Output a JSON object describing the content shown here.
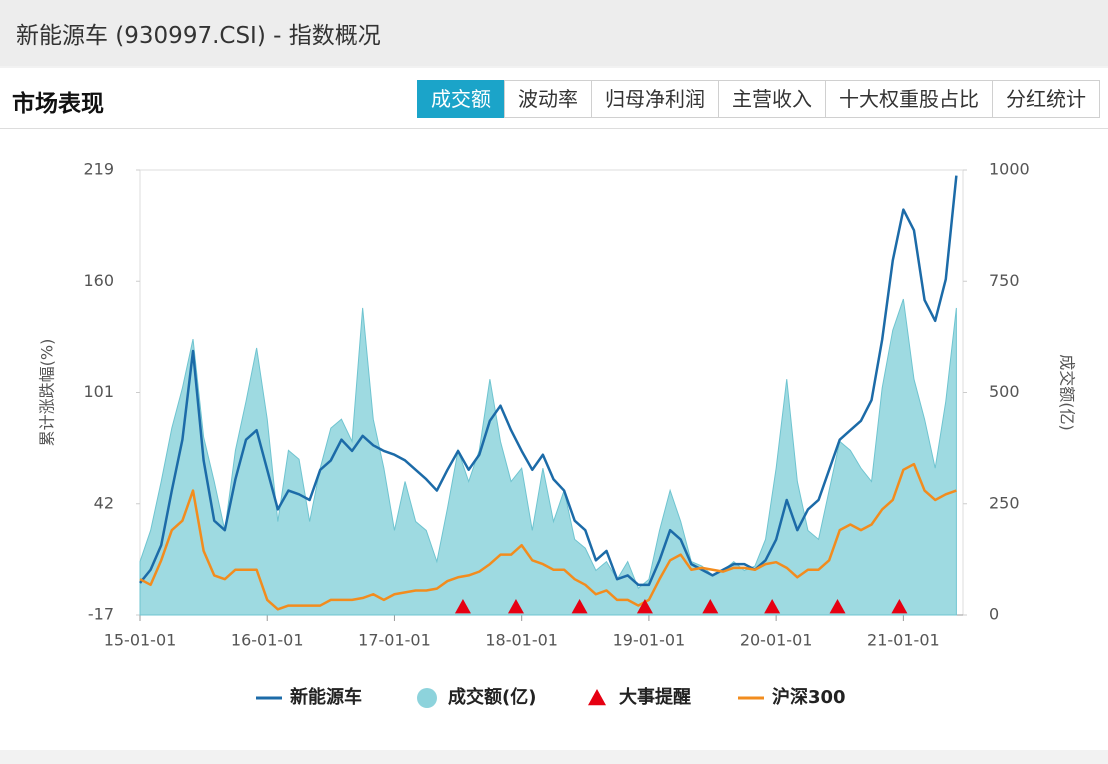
{
  "header": {
    "title": "新能源车 (930997.CSI) - 指数概况"
  },
  "section": {
    "title": "市场表现",
    "tabs": [
      "成交额",
      "波动率",
      "归母净利润",
      "主营收入",
      "十大权重股占比",
      "分红统计"
    ],
    "active_tab": 0
  },
  "chart_data": {
    "type": "line",
    "ylabel": "累计涨跌幅(%)",
    "y2label": "成交额(亿)",
    "x": [
      "15-01-01",
      "15-02-01",
      "15-03-01",
      "15-04-01",
      "15-05-01",
      "15-06-01",
      "15-07-01",
      "15-08-01",
      "15-09-01",
      "15-10-01",
      "15-11-01",
      "15-12-01",
      "16-01-01",
      "16-02-01",
      "16-03-01",
      "16-04-01",
      "16-05-01",
      "16-06-01",
      "16-07-01",
      "16-08-01",
      "16-09-01",
      "16-10-01",
      "16-11-01",
      "16-12-01",
      "17-01-01",
      "17-02-01",
      "17-03-01",
      "17-04-01",
      "17-05-01",
      "17-06-01",
      "17-07-01",
      "17-08-01",
      "17-09-01",
      "17-10-01",
      "17-11-01",
      "17-12-01",
      "18-01-01",
      "18-02-01",
      "18-03-01",
      "18-04-01",
      "18-05-01",
      "18-06-01",
      "18-07-01",
      "18-08-01",
      "18-09-01",
      "18-10-01",
      "18-11-01",
      "18-12-01",
      "19-01-01",
      "19-02-01",
      "19-03-01",
      "19-04-01",
      "19-05-01",
      "19-06-01",
      "19-07-01",
      "19-08-01",
      "19-09-01",
      "19-10-01",
      "19-11-01",
      "19-12-01",
      "20-01-01",
      "20-02-01",
      "20-03-01",
      "20-04-01",
      "20-05-01",
      "20-06-01",
      "20-07-01",
      "20-08-01",
      "20-09-01",
      "20-10-01",
      "20-11-01",
      "20-12-01",
      "21-01-01",
      "21-02-01",
      "21-03-01",
      "21-04-01",
      "21-05-01",
      "21-06-01"
    ],
    "series": [
      {
        "name": "新能源车",
        "color": "#1c6ba8",
        "axis": "y",
        "values": [
          0,
          7,
          20,
          49,
          76,
          123,
          65,
          33,
          28,
          55,
          76,
          81,
          60,
          39,
          49,
          47,
          44,
          60,
          65,
          76,
          70,
          78,
          73,
          70,
          68,
          65,
          60,
          55,
          49,
          60,
          70,
          60,
          68,
          86,
          94,
          81,
          70,
          60,
          68,
          55,
          49,
          33,
          28,
          12,
          17,
          2,
          4,
          -1,
          -1,
          12,
          28,
          23,
          10,
          7,
          4,
          7,
          10,
          10,
          7,
          12,
          23,
          44,
          28,
          39,
          44,
          60,
          76,
          81,
          86,
          97,
          129,
          171,
          198,
          187,
          150,
          139,
          161,
          216
        ]
      },
      {
        "name": "成交额(亿)",
        "type": "area",
        "color": "#8dd3dc",
        "axis": "y2",
        "values": [
          120,
          190,
          300,
          420,
          510,
          620,
          400,
          300,
          190,
          370,
          480,
          600,
          440,
          210,
          370,
          350,
          210,
          330,
          420,
          440,
          390,
          690,
          440,
          330,
          190,
          300,
          210,
          190,
          120,
          240,
          370,
          300,
          370,
          530,
          390,
          300,
          330,
          190,
          330,
          210,
          280,
          170,
          150,
          100,
          120,
          80,
          120,
          60,
          80,
          190,
          280,
          210,
          120,
          110,
          90,
          100,
          120,
          100,
          110,
          170,
          330,
          530,
          300,
          190,
          170,
          280,
          390,
          370,
          330,
          300,
          510,
          640,
          710,
          530,
          440,
          330,
          480,
          690
        ]
      },
      {
        "name": "沪深300",
        "color": "#f28c1e",
        "axis": "y",
        "values": [
          2,
          -1,
          12,
          28,
          33,
          49,
          17,
          4,
          2,
          7,
          7,
          7,
          -9,
          -14,
          -12,
          -12,
          -12,
          -12,
          -9,
          -9,
          -9,
          -8,
          -6,
          -9,
          -6,
          -5,
          -4,
          -4,
          -3,
          1,
          3,
          4,
          6,
          10,
          15,
          15,
          20,
          12,
          10,
          7,
          7,
          2,
          -1,
          -6,
          -4,
          -9,
          -9,
          -12,
          -9,
          2,
          12,
          15,
          7,
          8,
          7,
          6,
          8,
          8,
          7,
          10,
          11,
          8,
          3,
          7,
          7,
          12,
          28,
          31,
          28,
          31,
          39,
          44,
          60,
          63,
          49,
          44,
          47,
          49
        ]
      }
    ],
    "events": {
      "name": "大事提醒",
      "color": "#e60012",
      "x": [
        "17-07-15",
        "17-12-15",
        "18-06-15",
        "18-12-20",
        "19-06-25",
        "19-12-20",
        "20-06-25",
        "20-12-20"
      ]
    },
    "xlim": [
      "15-01-01",
      "21-06-20"
    ],
    "xticks": [
      "15-01-01",
      "16-01-01",
      "17-01-01",
      "18-01-01",
      "19-01-01",
      "20-01-01",
      "21-01-01"
    ],
    "ylim": [
      -17,
      219
    ],
    "yticks": [
      -17,
      42,
      101,
      160,
      219
    ],
    "y2lim": [
      0,
      1000
    ],
    "y2ticks": [
      0,
      250,
      500,
      750,
      1000
    ]
  }
}
